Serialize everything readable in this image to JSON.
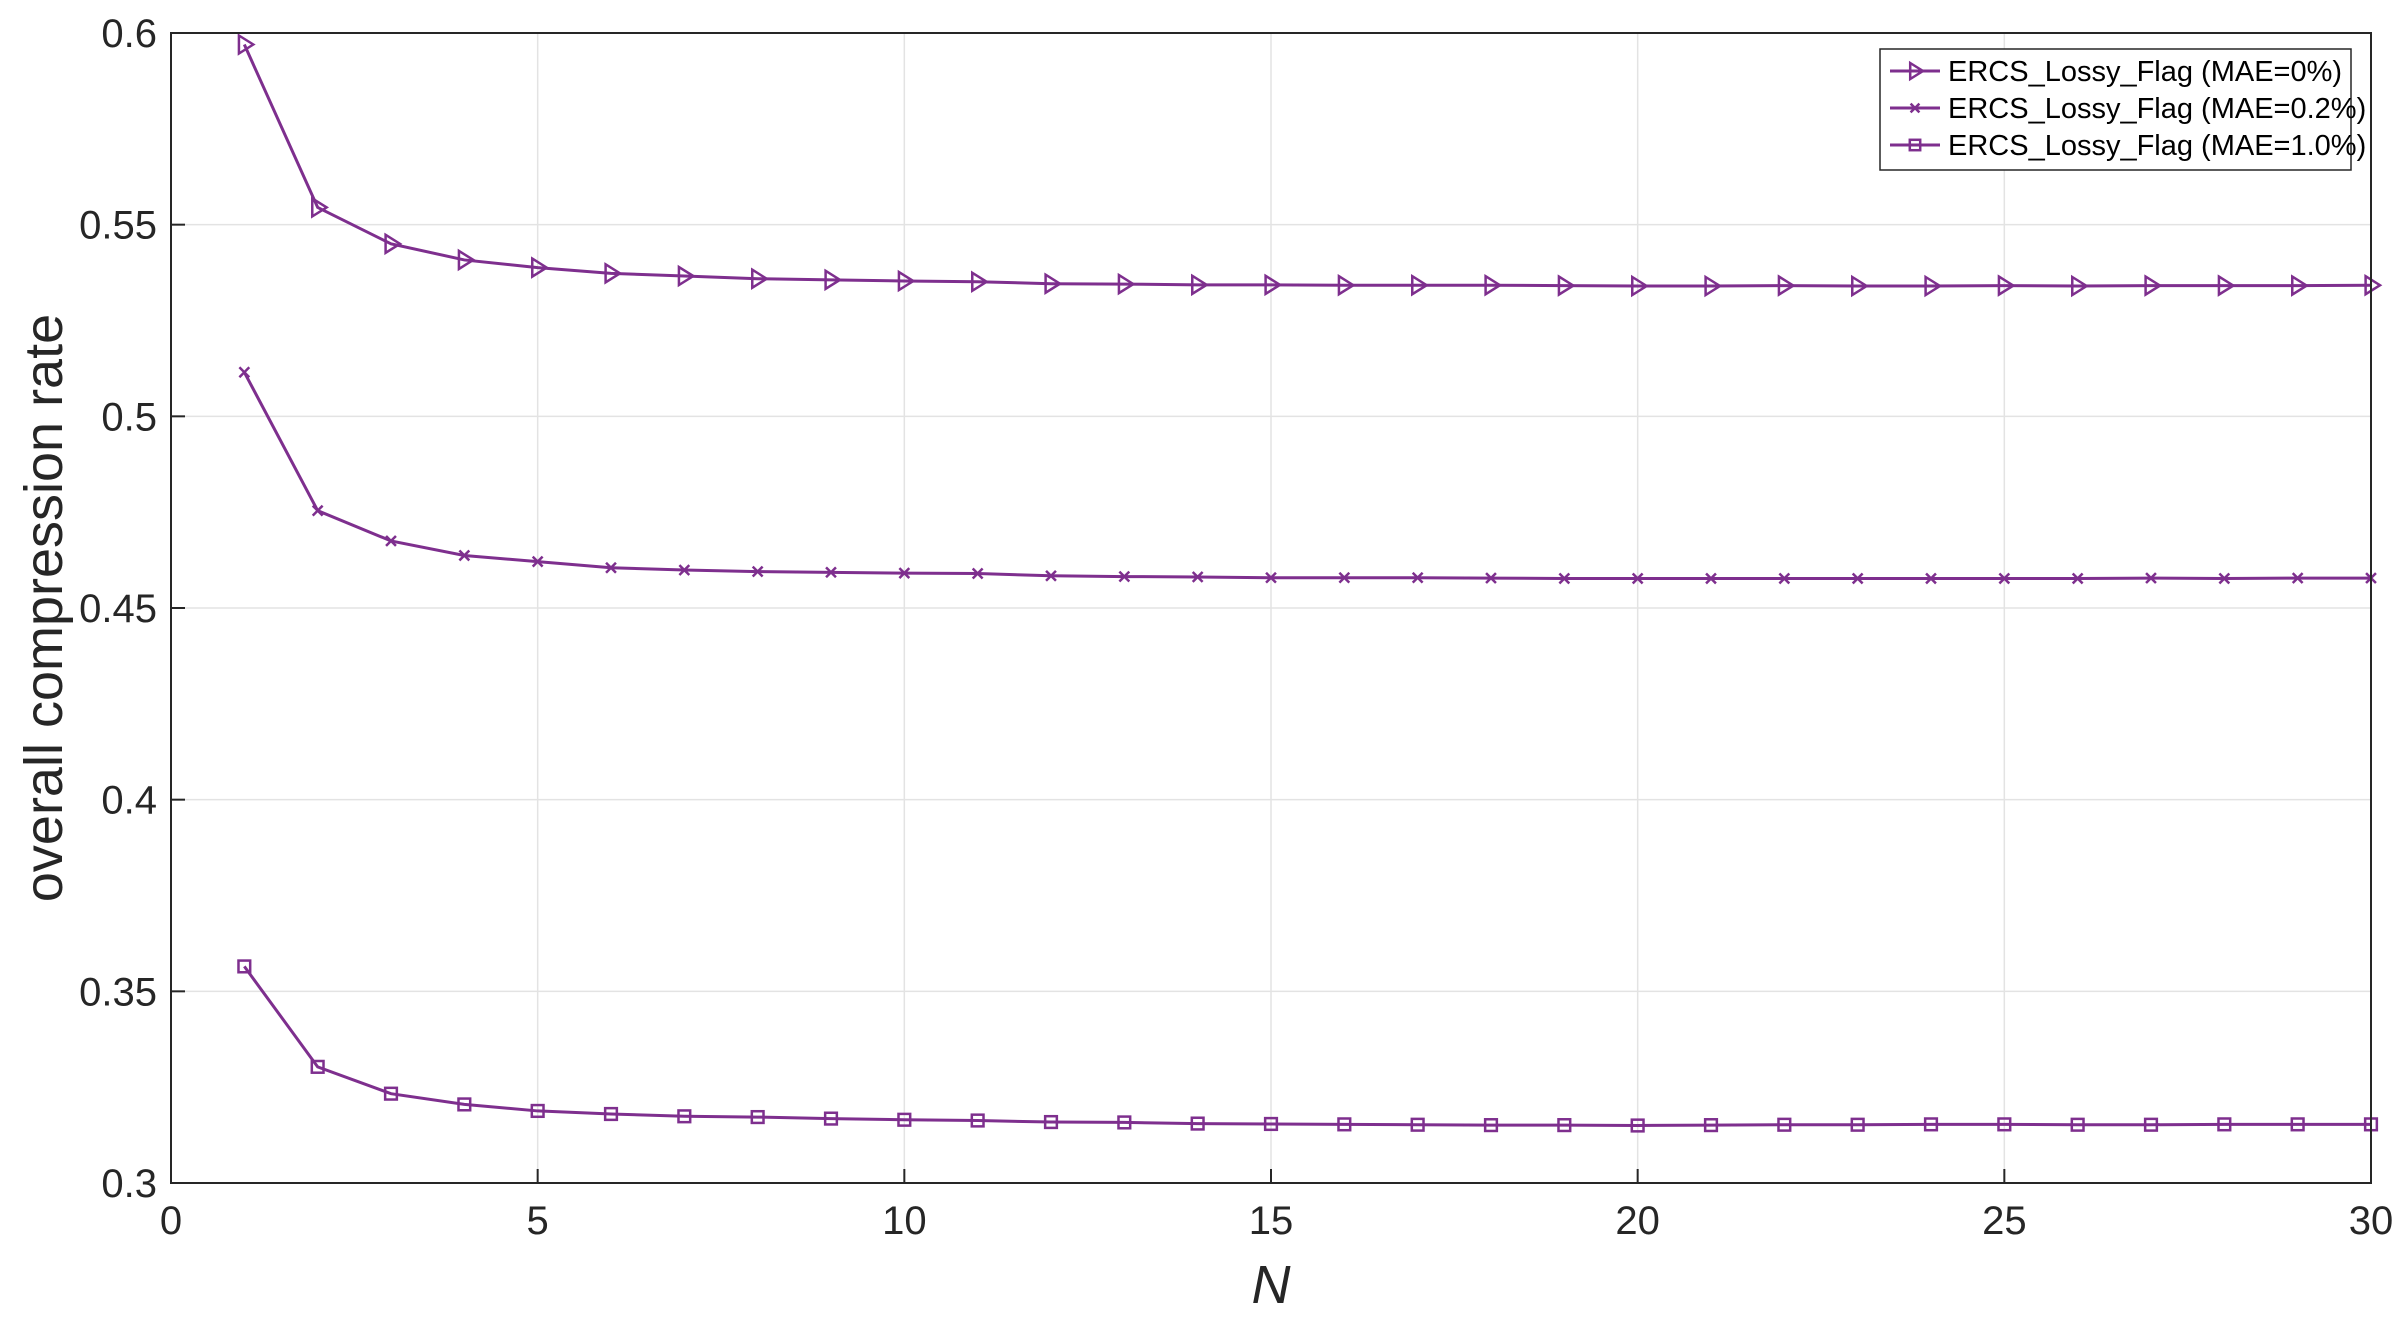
{
  "chart_data": {
    "type": "line",
    "title": "",
    "xlabel": "N",
    "ylabel": "overall compression rate",
    "xlim": [
      0,
      30
    ],
    "ylim": [
      0.3,
      0.6
    ],
    "xticks": [
      "0",
      "5",
      "10",
      "15",
      "20",
      "25",
      "30"
    ],
    "yticks": [
      "0.3",
      "0.35",
      "0.4",
      "0.45",
      "0.5",
      "0.55",
      "0.6"
    ],
    "grid": true,
    "legend_position": "top-right",
    "color": "#7E2F8E",
    "x": [
      1,
      2,
      3,
      4,
      5,
      6,
      7,
      8,
      9,
      10,
      11,
      12,
      13,
      14,
      15,
      16,
      17,
      18,
      19,
      20,
      21,
      22,
      23,
      24,
      25,
      26,
      27,
      28,
      29,
      30
    ],
    "series": [
      {
        "name": "ERCS_Lossy_Flag (MAE=0%)",
        "marker": "triangle-right",
        "values": [
          0.597,
          0.5545,
          0.545,
          0.5408,
          0.5388,
          0.5373,
          0.5366,
          0.5359,
          0.5356,
          0.5353,
          0.5351,
          0.5346,
          0.5345,
          0.5343,
          0.5343,
          0.5342,
          0.5342,
          0.5342,
          0.5341,
          0.534,
          0.534,
          0.5341,
          0.534,
          0.534,
          0.5341,
          0.534,
          0.5341,
          0.5341,
          0.5341,
          0.5342
        ]
      },
      {
        "name": "ERCS_Lossy_Flag (MAE=0.2%)",
        "marker": "x",
        "values": [
          0.5115,
          0.4754,
          0.4675,
          0.4637,
          0.4621,
          0.4605,
          0.4599,
          0.4595,
          0.4593,
          0.4591,
          0.459,
          0.4584,
          0.4582,
          0.4581,
          0.4579,
          0.4579,
          0.4579,
          0.4578,
          0.4577,
          0.4577,
          0.4577,
          0.4577,
          0.4577,
          0.4577,
          0.4577,
          0.4577,
          0.4578,
          0.4577,
          0.4578,
          0.4578
        ]
      },
      {
        "name": "ERCS_Lossy_Flag (MAE=1.0%)",
        "marker": "square",
        "values": [
          0.3565,
          0.3303,
          0.3233,
          0.3205,
          0.3188,
          0.318,
          0.3174,
          0.3172,
          0.3168,
          0.3165,
          0.3163,
          0.3159,
          0.3158,
          0.3155,
          0.3154,
          0.3153,
          0.3152,
          0.3151,
          0.3151,
          0.315,
          0.3151,
          0.3152,
          0.3152,
          0.3153,
          0.3153,
          0.3152,
          0.3152,
          0.3153,
          0.3153,
          0.3153
        ]
      }
    ]
  }
}
